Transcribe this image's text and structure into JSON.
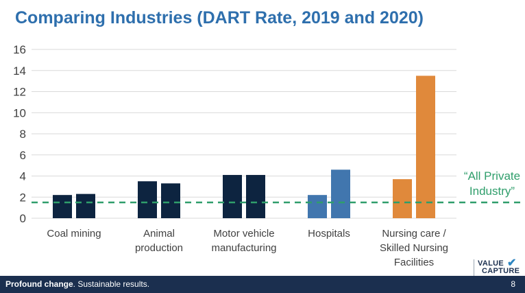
{
  "slide": {
    "title": "Comparing Industries (DART Rate, 2019 and 2020)",
    "footer_emphasis": "Profound change",
    "footer_rest": ". Sustainable results.",
    "page_number": "8",
    "logo_line1": "VALUE",
    "logo_line2": "CAPTURE",
    "logo_icon": "checkmark-icon"
  },
  "chart_data": {
    "type": "bar",
    "title": "Comparing Industries (DART Rate, 2019 and 2020)",
    "categories": [
      [
        "Coal mining"
      ],
      [
        "Animal",
        "production"
      ],
      [
        "Motor vehicle",
        "manufacturing"
      ],
      [
        "Hospitals"
      ],
      [
        "Nursing care /",
        "Skilled Nursing",
        "Facilities"
      ]
    ],
    "values": [
      [
        2.2,
        2.3
      ],
      [
        3.5,
        3.3
      ],
      [
        4.1,
        4.1
      ],
      [
        2.2,
        4.6
      ],
      [
        3.7,
        13.5
      ]
    ],
    "bar_colors": [
      "#0d2440",
      "#0d2440",
      "#0d2440",
      "#4176ae",
      "#e0893b"
    ],
    "ylim": [
      0,
      16
    ],
    "yticks": [
      0,
      2,
      4,
      6,
      8,
      10,
      12,
      14,
      16
    ],
    "grid": true,
    "reference_line": {
      "value": 1.5,
      "label": [
        "“All Private",
        "Industry”"
      ],
      "color": "#2f9e6b"
    }
  }
}
